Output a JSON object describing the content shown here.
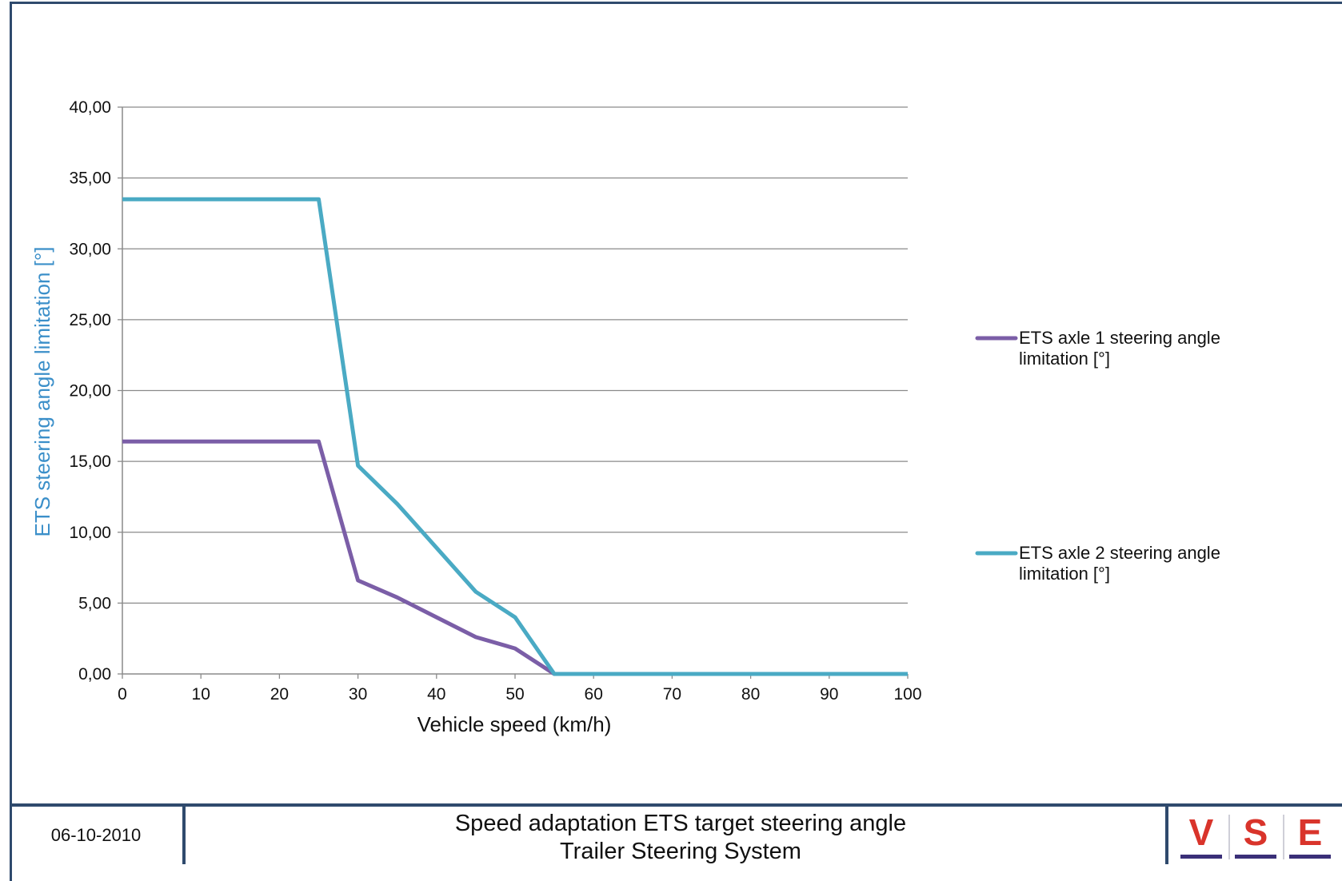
{
  "chart_data": {
    "type": "line",
    "title": "",
    "xlabel": "Vehicle speed (km/h)",
    "ylabel": "ETS steering angle limitation [°]",
    "xlim": [
      0,
      100
    ],
    "ylim": [
      0,
      40
    ],
    "x_ticks": [
      "0",
      "10",
      "20",
      "30",
      "40",
      "50",
      "60",
      "70",
      "80",
      "90",
      "100"
    ],
    "y_ticks": [
      "0,00",
      "5,00",
      "10,00",
      "15,00",
      "20,00",
      "25,00",
      "30,00",
      "35,00",
      "40,00"
    ],
    "grid": true,
    "legend_position": "right",
    "series": [
      {
        "name": "ETS axle 1 steering angle limitation [°]",
        "name_lines": [
          "ETS axle 1 steering angle",
          "limitation [°]"
        ],
        "color": "#7b5ea7",
        "x": [
          0,
          25,
          30,
          35,
          40,
          45,
          50,
          55,
          100
        ],
        "y": [
          16.4,
          16.4,
          6.6,
          5.4,
          4.0,
          2.6,
          1.8,
          0.0,
          0.0
        ]
      },
      {
        "name": "ETS axle 2 steering angle limitation [°]",
        "name_lines": [
          "ETS axle 2 steering angle",
          "limitation [°]"
        ],
        "color": "#4aaac4",
        "x": [
          0,
          25,
          30,
          35,
          40,
          45,
          50,
          55,
          100
        ],
        "y": [
          33.5,
          33.5,
          14.7,
          12.0,
          8.9,
          5.8,
          4.0,
          0.0,
          0.0
        ]
      }
    ]
  },
  "footer": {
    "date": "06-10-2010",
    "title_line1": "Speed adaptation ETS target steering angle",
    "title_line2": "Trailer Steering System",
    "logo": [
      "V",
      "S",
      "E"
    ]
  },
  "colors": {
    "ylabel": "#3b8fc9",
    "frame": "#2f4a6d",
    "logo_letters": "#d9342b",
    "logo_bars": "#3a2f78"
  }
}
